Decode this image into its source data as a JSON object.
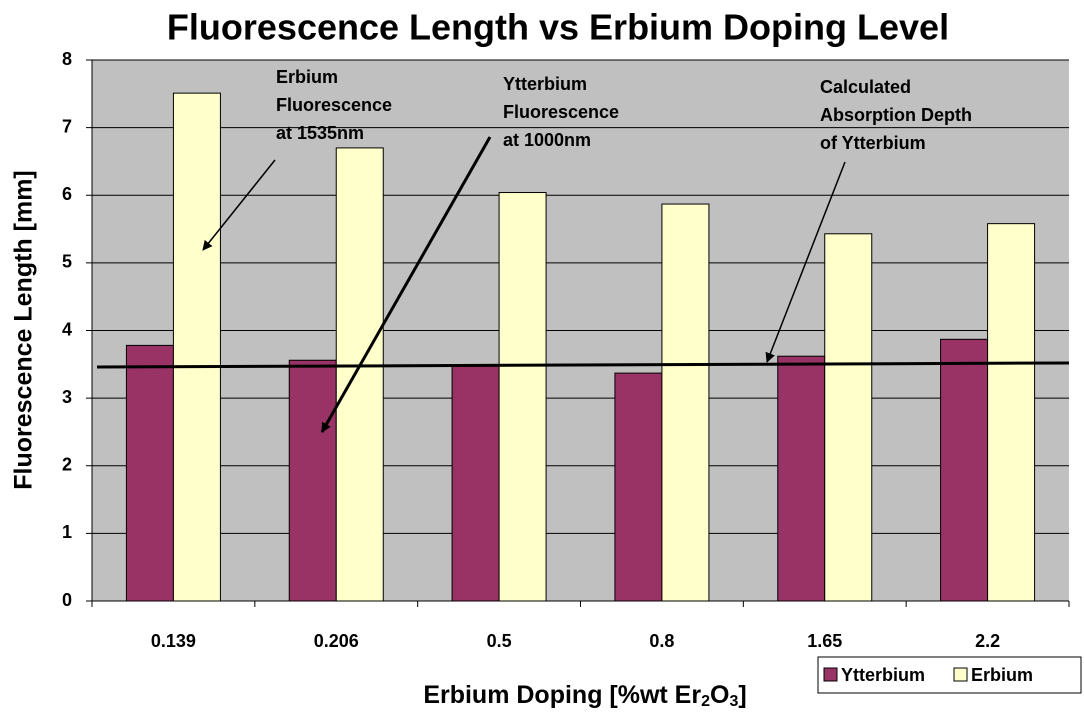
{
  "chart_data": {
    "type": "bar",
    "title": "Fluorescence Length vs Erbium Doping Level",
    "y_label": "Fluorescence Length [mm]",
    "x_label": [
      "Erbium Doping [%wt Er",
      "2",
      "O",
      "3",
      "]"
    ],
    "categories": [
      "0.139",
      "0.206",
      "0.5",
      "0.8",
      "1.65",
      "2.2"
    ],
    "series": [
      {
        "name": "Ytterbium",
        "color": "#993366",
        "values": [
          3.78,
          3.56,
          3.48,
          3.37,
          3.62,
          3.87
        ]
      },
      {
        "name": "Erbium",
        "color": "#ffffcc",
        "values": [
          7.51,
          6.7,
          6.04,
          5.87,
          5.43,
          5.58
        ]
      }
    ],
    "reference_line": {
      "values": [
        3.46,
        3.52
      ]
    },
    "annotations": [
      {
        "text": [
          "Erbium",
          "Fluorescence",
          "at 1535nm"
        ]
      },
      {
        "text": [
          "Ytterbium",
          "Fluorescence",
          "at 1000nm"
        ]
      },
      {
        "text": [
          "Calculated",
          "Absorption Depth",
          "of Ytterbium"
        ]
      }
    ],
    "ylim": [
      0,
      8
    ],
    "yticks": [
      0,
      1,
      2,
      3,
      4,
      5,
      6,
      7,
      8
    ],
    "grid": true,
    "legend": "bottom-right"
  }
}
